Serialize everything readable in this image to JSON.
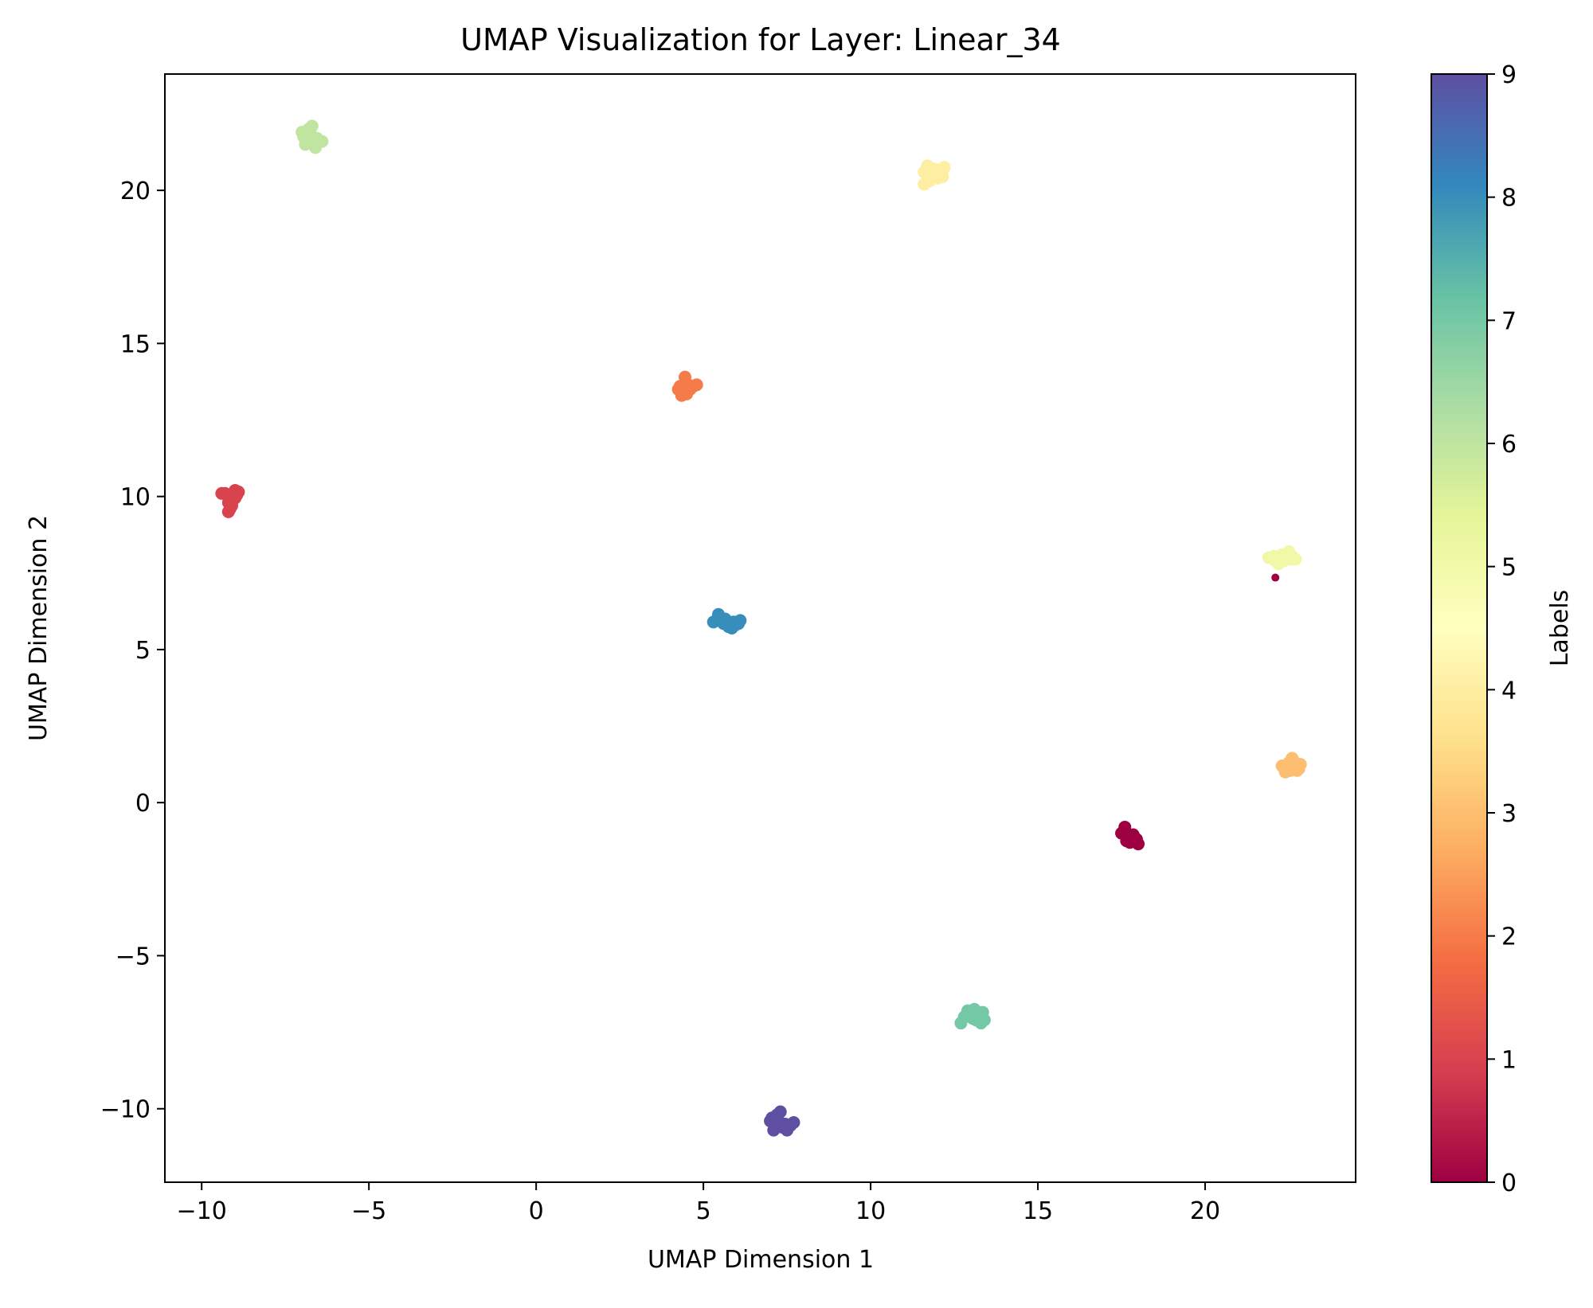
{
  "chart_data": {
    "type": "scatter",
    "title": "UMAP Visualization for Layer: Linear_34",
    "xlabel": "UMAP Dimension 1",
    "ylabel": "UMAP Dimension 2",
    "xlim": [
      -11.1,
      24.5
    ],
    "ylim": [
      -12.4,
      23.8
    ],
    "x_ticks": [
      -10,
      -5,
      0,
      5,
      10,
      15,
      20
    ],
    "y_ticks": [
      -10,
      -5,
      0,
      5,
      10,
      15,
      20
    ],
    "x_tick_labels": [
      "−10",
      "−5",
      "0",
      "5",
      "10",
      "15",
      "20"
    ],
    "y_tick_labels": [
      "−10",
      "−5",
      "0",
      "5",
      "10",
      "15",
      "20"
    ],
    "grid": false,
    "colormap": "Spectral",
    "colorbar": {
      "label": "Labels",
      "range": [
        0,
        9
      ],
      "ticks": [
        0,
        1,
        2,
        3,
        4,
        5,
        6,
        7,
        8,
        9
      ],
      "tick_labels": [
        "0",
        "1",
        "2",
        "3",
        "4",
        "5",
        "6",
        "7",
        "8",
        "9"
      ],
      "colors": [
        "#9e0142",
        "#d53e4f",
        "#f46d43",
        "#fdae61",
        "#fee08b",
        "#ffffbf",
        "#e6f598",
        "#abdda4",
        "#66c2a5",
        "#3288bd",
        "#5e4fa2"
      ]
    },
    "points": [
      {
        "x": -9.3,
        "y": 10.1,
        "label": 1
      },
      {
        "x": -9.1,
        "y": 10.0,
        "label": 1
      },
      {
        "x": -9.0,
        "y": 10.2,
        "label": 1
      },
      {
        "x": -8.9,
        "y": 10.15,
        "label": 1
      },
      {
        "x": -9.2,
        "y": 9.8,
        "label": 1
      },
      {
        "x": -9.15,
        "y": 9.6,
        "label": 1
      },
      {
        "x": -9.05,
        "y": 9.9,
        "label": 1
      },
      {
        "x": -9.2,
        "y": 9.5,
        "label": 1
      },
      {
        "x": -8.95,
        "y": 10.05,
        "label": 1
      },
      {
        "x": -9.4,
        "y": 10.1,
        "label": 1
      },
      {
        "x": -9.1,
        "y": 9.7,
        "label": 1
      },
      {
        "x": -9.0,
        "y": 9.95,
        "label": 1
      },
      {
        "x": -7.0,
        "y": 21.9,
        "label": 6
      },
      {
        "x": -6.8,
        "y": 22.0,
        "label": 6
      },
      {
        "x": -6.7,
        "y": 21.7,
        "label": 6
      },
      {
        "x": -6.9,
        "y": 21.5,
        "label": 6
      },
      {
        "x": -6.6,
        "y": 21.4,
        "label": 6
      },
      {
        "x": -6.5,
        "y": 21.6,
        "label": 6
      },
      {
        "x": -6.4,
        "y": 21.6,
        "label": 6
      },
      {
        "x": -6.75,
        "y": 21.85,
        "label": 6
      },
      {
        "x": -6.85,
        "y": 21.8,
        "label": 6
      },
      {
        "x": -6.55,
        "y": 21.7,
        "label": 6
      },
      {
        "x": -6.7,
        "y": 22.1,
        "label": 6
      },
      {
        "x": -6.95,
        "y": 21.75,
        "label": 6
      },
      {
        "x": 4.3,
        "y": 13.6,
        "label": 2
      },
      {
        "x": 4.4,
        "y": 13.4,
        "label": 2
      },
      {
        "x": 4.5,
        "y": 13.7,
        "label": 2
      },
      {
        "x": 4.6,
        "y": 13.5,
        "label": 2
      },
      {
        "x": 4.45,
        "y": 13.9,
        "label": 2
      },
      {
        "x": 4.7,
        "y": 13.6,
        "label": 2
      },
      {
        "x": 4.35,
        "y": 13.3,
        "label": 2
      },
      {
        "x": 4.55,
        "y": 13.55,
        "label": 2
      },
      {
        "x": 4.8,
        "y": 13.65,
        "label": 2
      },
      {
        "x": 4.25,
        "y": 13.5,
        "label": 2
      },
      {
        "x": 4.5,
        "y": 13.35,
        "label": 2
      },
      {
        "x": 4.4,
        "y": 13.65,
        "label": 2
      },
      {
        "x": 5.3,
        "y": 5.9,
        "label": 8
      },
      {
        "x": 5.5,
        "y": 6.0,
        "label": 8
      },
      {
        "x": 5.45,
        "y": 6.15,
        "label": 8
      },
      {
        "x": 5.6,
        "y": 5.85,
        "label": 8
      },
      {
        "x": 5.75,
        "y": 5.75,
        "label": 8
      },
      {
        "x": 5.9,
        "y": 5.9,
        "label": 8
      },
      {
        "x": 6.05,
        "y": 5.85,
        "label": 8
      },
      {
        "x": 6.1,
        "y": 5.95,
        "label": 8
      },
      {
        "x": 5.85,
        "y": 5.7,
        "label": 8
      },
      {
        "x": 5.4,
        "y": 5.95,
        "label": 8
      },
      {
        "x": 5.65,
        "y": 6.0,
        "label": 8
      },
      {
        "x": 5.95,
        "y": 5.8,
        "label": 8
      },
      {
        "x": 11.6,
        "y": 20.6,
        "label": 4
      },
      {
        "x": 11.7,
        "y": 20.8,
        "label": 4
      },
      {
        "x": 11.8,
        "y": 20.5,
        "label": 4
      },
      {
        "x": 11.9,
        "y": 20.7,
        "label": 4
      },
      {
        "x": 12.0,
        "y": 20.4,
        "label": 4
      },
      {
        "x": 12.1,
        "y": 20.6,
        "label": 4
      },
      {
        "x": 12.2,
        "y": 20.75,
        "label": 4
      },
      {
        "x": 11.6,
        "y": 20.2,
        "label": 4
      },
      {
        "x": 11.75,
        "y": 20.3,
        "label": 4
      },
      {
        "x": 12.05,
        "y": 20.5,
        "label": 4
      },
      {
        "x": 11.85,
        "y": 20.65,
        "label": 4
      },
      {
        "x": 12.15,
        "y": 20.45,
        "label": 4
      },
      {
        "x": 21.9,
        "y": 8.0,
        "label": 5
      },
      {
        "x": 22.1,
        "y": 7.9,
        "label": 5
      },
      {
        "x": 22.3,
        "y": 8.1,
        "label": 5
      },
      {
        "x": 22.4,
        "y": 8.0,
        "label": 5
      },
      {
        "x": 22.5,
        "y": 8.2,
        "label": 5
      },
      {
        "x": 22.6,
        "y": 8.05,
        "label": 5
      },
      {
        "x": 22.7,
        "y": 7.95,
        "label": 5
      },
      {
        "x": 22.2,
        "y": 7.8,
        "label": 5
      },
      {
        "x": 22.55,
        "y": 7.95,
        "label": 5
      },
      {
        "x": 22.05,
        "y": 8.05,
        "label": 5
      },
      {
        "x": 22.35,
        "y": 7.9,
        "label": 5
      },
      {
        "x": 22.1,
        "y": 7.35,
        "label": 0,
        "size": "small"
      },
      {
        "x": 22.3,
        "y": 1.2,
        "label": 3
      },
      {
        "x": 22.4,
        "y": 1.0,
        "label": 3
      },
      {
        "x": 22.5,
        "y": 1.3,
        "label": 3
      },
      {
        "x": 22.6,
        "y": 1.45,
        "label": 3
      },
      {
        "x": 22.7,
        "y": 1.2,
        "label": 3
      },
      {
        "x": 22.8,
        "y": 1.1,
        "label": 3
      },
      {
        "x": 22.85,
        "y": 1.25,
        "label": 3
      },
      {
        "x": 22.35,
        "y": 1.15,
        "label": 3
      },
      {
        "x": 22.55,
        "y": 1.05,
        "label": 3
      },
      {
        "x": 22.65,
        "y": 1.35,
        "label": 3
      },
      {
        "x": 22.45,
        "y": 1.25,
        "label": 3
      },
      {
        "x": 22.75,
        "y": 1.05,
        "label": 3
      },
      {
        "x": 17.5,
        "y": -1.0,
        "label": 0
      },
      {
        "x": 17.6,
        "y": -0.8,
        "label": 0
      },
      {
        "x": 17.7,
        "y": -1.1,
        "label": 0
      },
      {
        "x": 17.8,
        "y": -1.2,
        "label": 0
      },
      {
        "x": 17.9,
        "y": -1.15,
        "label": 0
      },
      {
        "x": 18.0,
        "y": -1.35,
        "label": 0
      },
      {
        "x": 17.65,
        "y": -1.25,
        "label": 0
      },
      {
        "x": 17.85,
        "y": -1.05,
        "label": 0
      },
      {
        "x": 17.55,
        "y": -0.95,
        "label": 0
      },
      {
        "x": 17.75,
        "y": -1.3,
        "label": 0
      },
      {
        "x": 17.95,
        "y": -1.2,
        "label": 0
      },
      {
        "x": 17.6,
        "y": -1.05,
        "label": 0
      },
      {
        "x": 12.7,
        "y": -7.2,
        "label": 7
      },
      {
        "x": 12.8,
        "y": -7.0,
        "label": 7
      },
      {
        "x": 12.9,
        "y": -6.8,
        "label": 7
      },
      {
        "x": 13.0,
        "y": -6.9,
        "label": 7
      },
      {
        "x": 13.1,
        "y": -6.75,
        "label": 7
      },
      {
        "x": 13.2,
        "y": -7.0,
        "label": 7
      },
      {
        "x": 13.3,
        "y": -7.2,
        "label": 7
      },
      {
        "x": 13.4,
        "y": -7.1,
        "label": 7
      },
      {
        "x": 13.35,
        "y": -6.85,
        "label": 7
      },
      {
        "x": 13.15,
        "y": -7.1,
        "label": 7
      },
      {
        "x": 12.85,
        "y": -6.95,
        "label": 7
      },
      {
        "x": 13.05,
        "y": -7.05,
        "label": 7
      },
      {
        "x": 7.0,
        "y": -10.4,
        "label": 9
      },
      {
        "x": 7.1,
        "y": -10.7,
        "label": 9
      },
      {
        "x": 7.2,
        "y": -10.2,
        "label": 9
      },
      {
        "x": 7.3,
        "y": -10.1,
        "label": 9
      },
      {
        "x": 7.35,
        "y": -10.6,
        "label": 9
      },
      {
        "x": 7.5,
        "y": -10.7,
        "label": 9
      },
      {
        "x": 7.6,
        "y": -10.55,
        "label": 9
      },
      {
        "x": 7.7,
        "y": -10.45,
        "label": 9
      },
      {
        "x": 7.15,
        "y": -10.5,
        "label": 9
      },
      {
        "x": 7.05,
        "y": -10.3,
        "label": 9
      },
      {
        "x": 7.25,
        "y": -10.4,
        "label": 9
      },
      {
        "x": 7.45,
        "y": -10.5,
        "label": 9
      }
    ]
  }
}
